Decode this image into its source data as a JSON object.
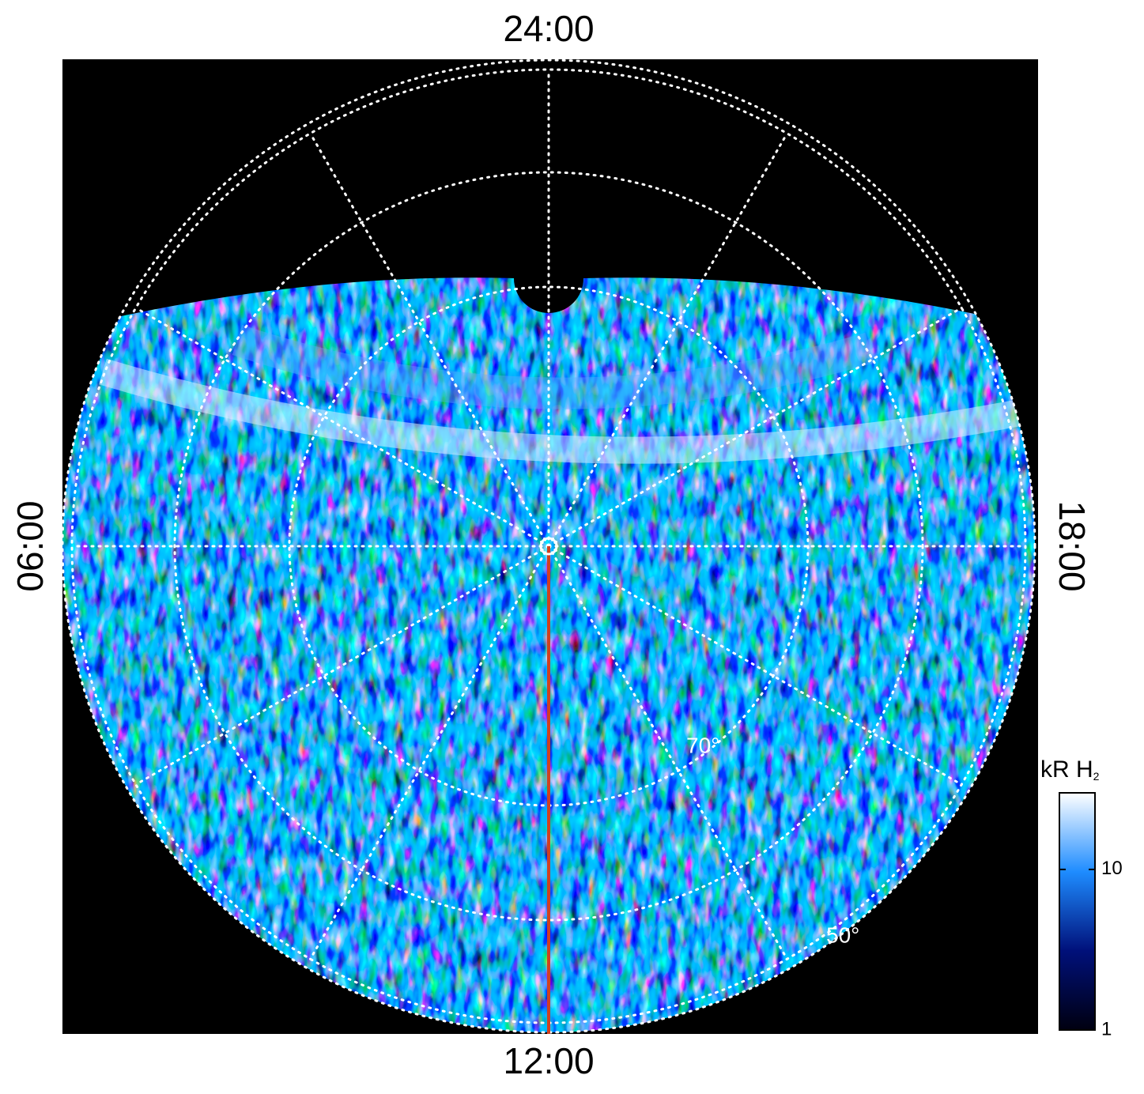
{
  "local_time_labels": {
    "top": "24:00",
    "left": "06:00",
    "right": "18:00",
    "bottom": "12:00"
  },
  "latitude_labels": [
    "70°",
    "50°"
  ],
  "colorbar": {
    "title": "kR H",
    "title_subscript": "2",
    "scale": "log",
    "lim": [
      1,
      30
    ],
    "ticks": [
      1,
      10
    ],
    "colors": [
      "#000010",
      "#00107a",
      "#1e8cff",
      "#ffffff"
    ]
  }
}
